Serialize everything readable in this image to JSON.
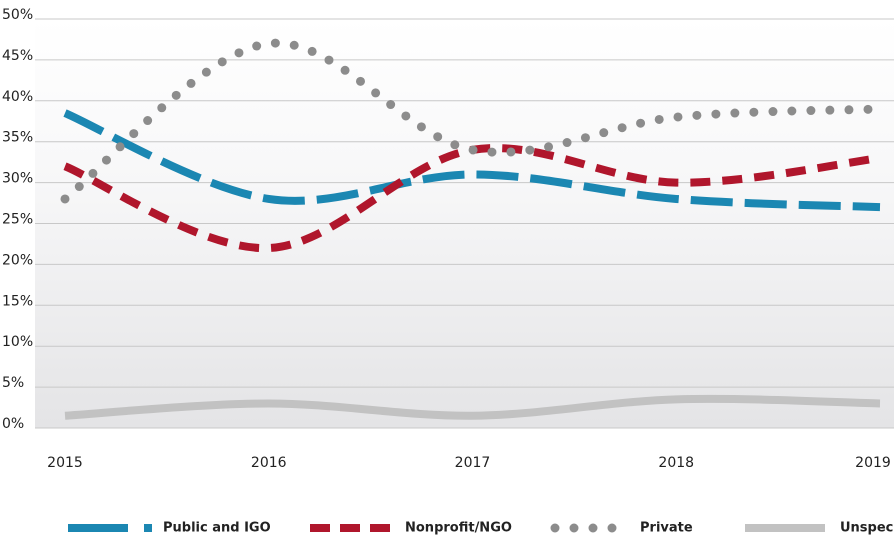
{
  "chart_data": {
    "type": "line",
    "categories": [
      "2015",
      "2016",
      "2017",
      "2018",
      "2019"
    ],
    "series": [
      {
        "name": "Public and IGO",
        "color": "#1b87b2",
        "values": [
          38.5,
          28,
          31,
          28,
          27
        ]
      },
      {
        "name": "Nonprofit/NGO",
        "color": "#b0162c",
        "values": [
          32,
          22,
          34,
          30,
          33
        ]
      },
      {
        "name": "Private",
        "color": "#8c8c8c",
        "values": [
          28,
          47,
          34,
          38,
          39
        ]
      },
      {
        "name": "Unspecified",
        "color": "#c2c2c2",
        "values": [
          1.5,
          3,
          1.5,
          3.5,
          3
        ]
      }
    ],
    "ylim": [
      0,
      50
    ],
    "yticks": [
      {
        "value": 0,
        "label": "0%"
      },
      {
        "value": 5,
        "label": "5%"
      },
      {
        "value": 10,
        "label": "10%"
      },
      {
        "value": 15,
        "label": "15%"
      },
      {
        "value": 20,
        "label": "20%"
      },
      {
        "value": 25,
        "label": "25%"
      },
      {
        "value": 30,
        "label": "30%"
      },
      {
        "value": 35,
        "label": "35%"
      },
      {
        "value": 40,
        "label": "40%"
      },
      {
        "value": 45,
        "label": "45%"
      },
      {
        "value": 50,
        "label": "50%"
      }
    ],
    "grid": true
  }
}
